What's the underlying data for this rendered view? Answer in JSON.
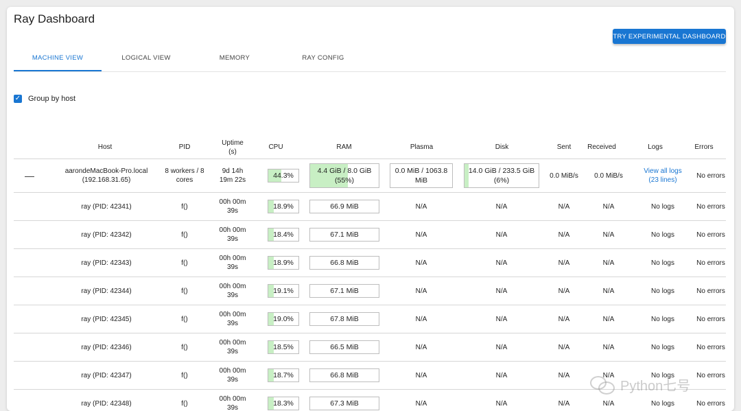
{
  "header": {
    "title": "Ray Dashboard",
    "experimental_button": "TRY EXPERIMENTAL DASHBOARD"
  },
  "tabs": [
    {
      "label": "MACHINE VIEW",
      "active": true
    },
    {
      "label": "LOGICAL VIEW",
      "active": false
    },
    {
      "label": "MEMORY",
      "active": false
    },
    {
      "label": "RAY CONFIG",
      "active": false
    }
  ],
  "group_by_host": {
    "label": "Group by host",
    "checked": true
  },
  "table": {
    "headers": {
      "host": "Host",
      "pid": "PID",
      "uptime": "Uptime (s)",
      "cpu": "CPU",
      "ram": "RAM",
      "plasma": "Plasma",
      "disk": "Disk",
      "sent": "Sent",
      "received": "Received",
      "logs": "Logs",
      "errors": "Errors"
    },
    "host_row": {
      "expand_icon": "collapse-icon",
      "host": "aarondeMacBook-Pro.local (192.168.31.65)",
      "pid": "8 workers / 8 cores",
      "uptime": "9d 14h 19m 22s",
      "cpu": "44.3%",
      "cpu_pct": 44.3,
      "ram": "4.4 GiB / 8.0 GiB (55%)",
      "ram_pct": 55,
      "plasma": "0.0 MiB / 1063.8 MiB",
      "plasma_pct": 0,
      "disk": "14.0 GiB / 233.5 GiB (6%)",
      "disk_pct": 6,
      "sent": "0.0 MiB/s",
      "received": "0.0 MiB/s",
      "logs": "View all logs (23 lines)",
      "errors": "No errors"
    },
    "worker_rows": [
      {
        "host": "ray (PID: 42341)",
        "pid": "f()",
        "uptime": "00h 00m 39s",
        "cpu": "18.9%",
        "cpu_pct": 18.9,
        "ram": "66.9 MiB",
        "plasma": "N/A",
        "disk": "N/A",
        "sent": "N/A",
        "received": "N/A",
        "logs": "No logs",
        "errors": "No errors"
      },
      {
        "host": "ray (PID: 42342)",
        "pid": "f()",
        "uptime": "00h 00m 39s",
        "cpu": "18.4%",
        "cpu_pct": 18.4,
        "ram": "67.1 MiB",
        "plasma": "N/A",
        "disk": "N/A",
        "sent": "N/A",
        "received": "N/A",
        "logs": "No logs",
        "errors": "No errors"
      },
      {
        "host": "ray (PID: 42343)",
        "pid": "f()",
        "uptime": "00h 00m 39s",
        "cpu": "18.9%",
        "cpu_pct": 18.9,
        "ram": "66.8 MiB",
        "plasma": "N/A",
        "disk": "N/A",
        "sent": "N/A",
        "received": "N/A",
        "logs": "No logs",
        "errors": "No errors"
      },
      {
        "host": "ray (PID: 42344)",
        "pid": "f()",
        "uptime": "00h 00m 39s",
        "cpu": "19.1%",
        "cpu_pct": 19.1,
        "ram": "67.1 MiB",
        "plasma": "N/A",
        "disk": "N/A",
        "sent": "N/A",
        "received": "N/A",
        "logs": "No logs",
        "errors": "No errors"
      },
      {
        "host": "ray (PID: 42345)",
        "pid": "f()",
        "uptime": "00h 00m 39s",
        "cpu": "19.0%",
        "cpu_pct": 19.0,
        "ram": "67.8 MiB",
        "plasma": "N/A",
        "disk": "N/A",
        "sent": "N/A",
        "received": "N/A",
        "logs": "No logs",
        "errors": "No errors"
      },
      {
        "host": "ray (PID: 42346)",
        "pid": "f()",
        "uptime": "00h 00m 39s",
        "cpu": "18.5%",
        "cpu_pct": 18.5,
        "ram": "66.5 MiB",
        "plasma": "N/A",
        "disk": "N/A",
        "sent": "N/A",
        "received": "N/A",
        "logs": "No logs",
        "errors": "No errors"
      },
      {
        "host": "ray (PID: 42347)",
        "pid": "f()",
        "uptime": "00h 00m 39s",
        "cpu": "18.7%",
        "cpu_pct": 18.7,
        "ram": "66.8 MiB",
        "plasma": "N/A",
        "disk": "N/A",
        "sent": "N/A",
        "received": "N/A",
        "logs": "No logs",
        "errors": "No errors"
      },
      {
        "host": "ray (PID: 42348)",
        "pid": "f()",
        "uptime": "00h 00m 39s",
        "cpu": "18.3%",
        "cpu_pct": 18.3,
        "ram": "67.3 MiB",
        "plasma": "N/A",
        "disk": "N/A",
        "sent": "N/A",
        "received": "N/A",
        "logs": "No logs",
        "errors": "No errors"
      }
    ]
  },
  "watermark": {
    "text": "Python七号",
    "icon": "wechat-icon"
  },
  "colors": {
    "accent": "#1976d2",
    "bar_fill": "#c8efc4",
    "row_border": "#d6d6d6"
  }
}
